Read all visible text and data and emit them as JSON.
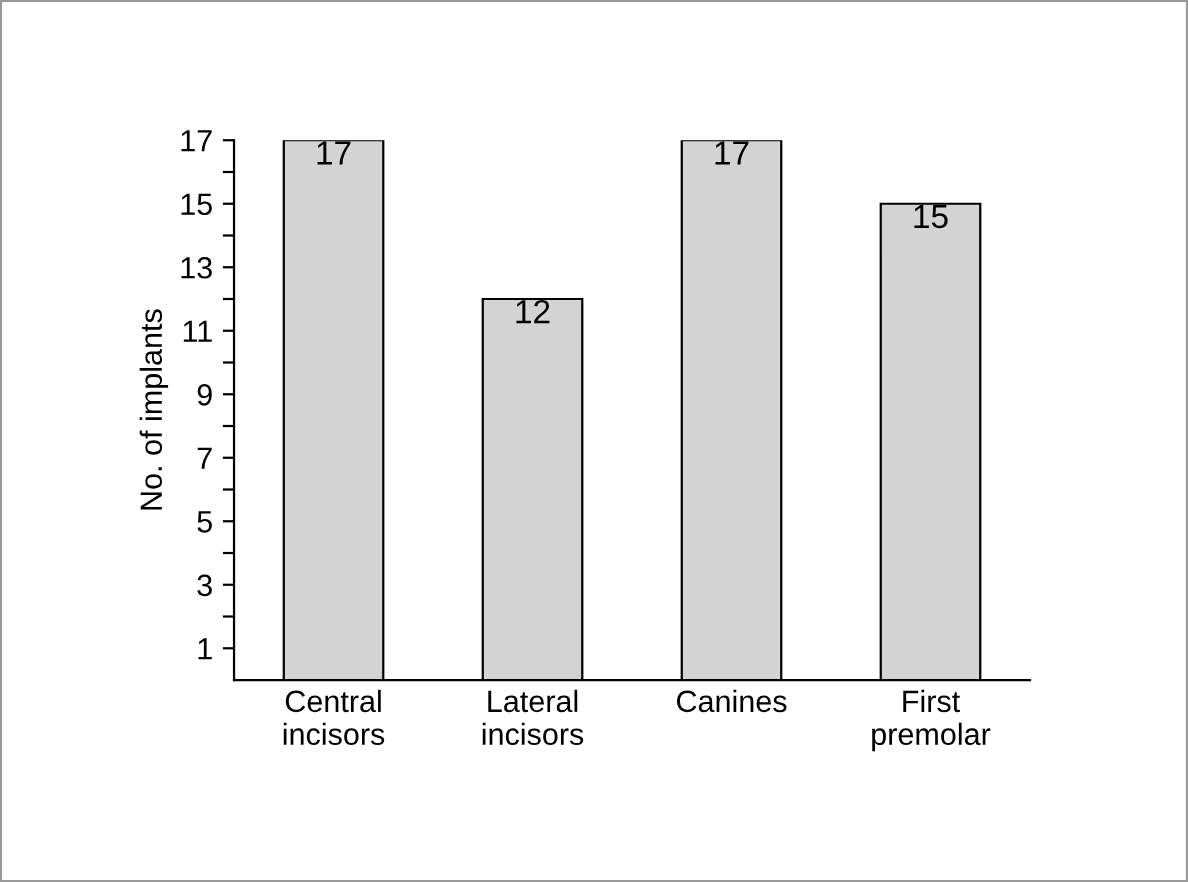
{
  "chart_data": {
    "type": "bar",
    "ylabel": "No. of implants",
    "categories": [
      "Central\nincisors",
      "Lateral\nincisors",
      "Canines",
      "First\npremolar"
    ],
    "values": [
      17,
      12,
      17,
      15
    ],
    "color": "#d3d3d3",
    "ylim": [
      0,
      17
    ],
    "yticks": [
      1,
      {
        "value": 2,
        "label": null
      },
      3,
      {
        "value": 4,
        "label": null
      },
      5,
      {
        "value": 6,
        "label": null
      },
      7,
      {
        "value": 8,
        "label": null
      },
      9,
      {
        "value": 10,
        "label": null
      },
      11,
      {
        "value": 12,
        "label": null
      },
      13,
      {
        "value": 14,
        "label": null
      },
      15,
      {
        "value": 16,
        "label": null
      },
      17
    ],
    "data_labels": true,
    "grid": false,
    "legend": false
  }
}
